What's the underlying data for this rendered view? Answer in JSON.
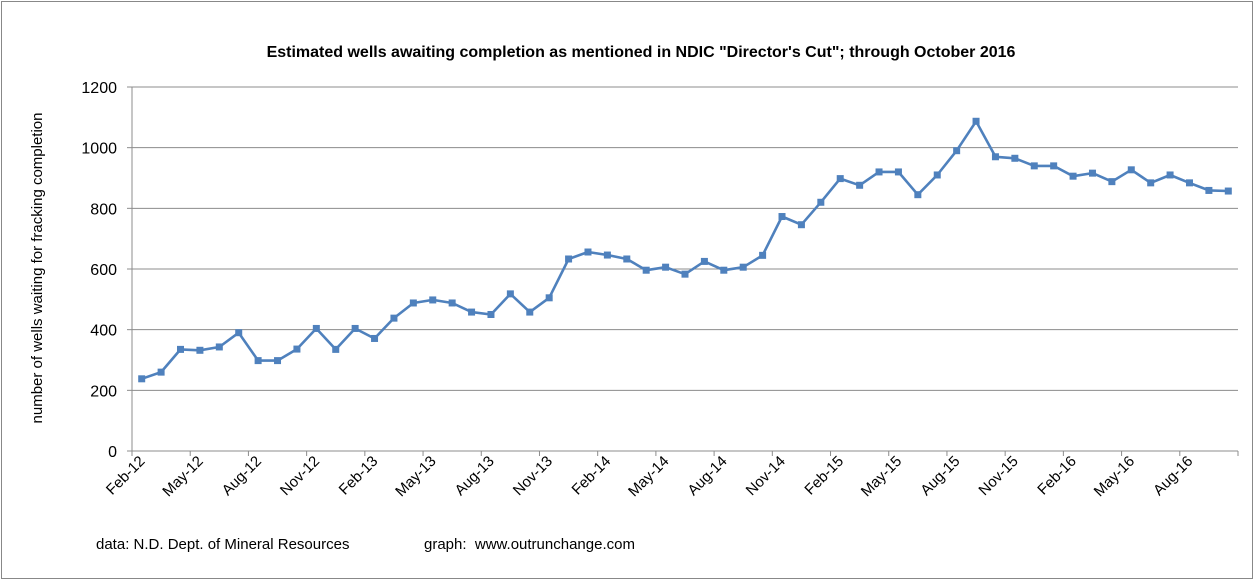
{
  "chart_data": {
    "type": "line",
    "title": "Estimated wells awaiting completion as mentioned in NDIC \"Director's Cut\"; through October 2016",
    "xlabel": "",
    "ylabel": "number of wells waiting for fracking completion",
    "ylim": [
      0,
      1200
    ],
    "yticks": [
      0,
      200,
      400,
      600,
      800,
      1000,
      1200
    ],
    "grid": true,
    "legend": "none",
    "tick_labels": [
      "Feb-12",
      "May-12",
      "Aug-12",
      "Nov-12",
      "Feb-13",
      "May-13",
      "Aug-13",
      "Nov-13",
      "Feb-14",
      "May-14",
      "Aug-14",
      "Nov-14",
      "Feb-15",
      "May-15",
      "Aug-15",
      "Nov-15",
      "Feb-16",
      "May-16",
      "Aug-16"
    ],
    "x": [
      "Feb-12",
      "Mar-12",
      "Apr-12",
      "May-12",
      "Jun-12",
      "Jul-12",
      "Aug-12",
      "Sep-12",
      "Oct-12",
      "Nov-12",
      "Dec-12",
      "Jan-13",
      "Feb-13",
      "Mar-13",
      "Apr-13",
      "May-13",
      "Jun-13",
      "Jul-13",
      "Aug-13",
      "Sep-13",
      "Oct-13",
      "Nov-13",
      "Dec-13",
      "Jan-14",
      "Feb-14",
      "Mar-14",
      "Apr-14",
      "May-14",
      "Jun-14",
      "Jul-14",
      "Aug-14",
      "Sep-14",
      "Oct-14",
      "Nov-14",
      "Dec-14",
      "Jan-15",
      "Feb-15",
      "Mar-15",
      "Apr-15",
      "May-15",
      "Jun-15",
      "Jul-15",
      "Aug-15",
      "Sep-15",
      "Oct-15",
      "Nov-15",
      "Dec-15",
      "Jan-16",
      "Feb-16",
      "Mar-16",
      "Apr-16",
      "May-16",
      "Jun-16",
      "Jul-16",
      "Aug-16",
      "Sep-16",
      "Oct-16"
    ],
    "series": [
      {
        "values": [
          238,
          260,
          335,
          332,
          343,
          390,
          298,
          298,
          336,
          404,
          335,
          404,
          371,
          438,
          488,
          498,
          488,
          458,
          450,
          518,
          458,
          505,
          633,
          656,
          646,
          633,
          596,
          606,
          583,
          625,
          596,
          606,
          645,
          773,
          746,
          820,
          898,
          876,
          920,
          920,
          845,
          910,
          990,
          1087,
          970,
          965,
          940,
          940,
          906,
          916,
          888,
          927,
          884,
          910,
          884,
          859,
          857
        ],
        "color": "#4F81BD"
      }
    ]
  },
  "footer": {
    "data_credit": "data: N.D. Dept. of Mineral Resources",
    "graph_credit": "graph:  www.outrunchange.com"
  }
}
